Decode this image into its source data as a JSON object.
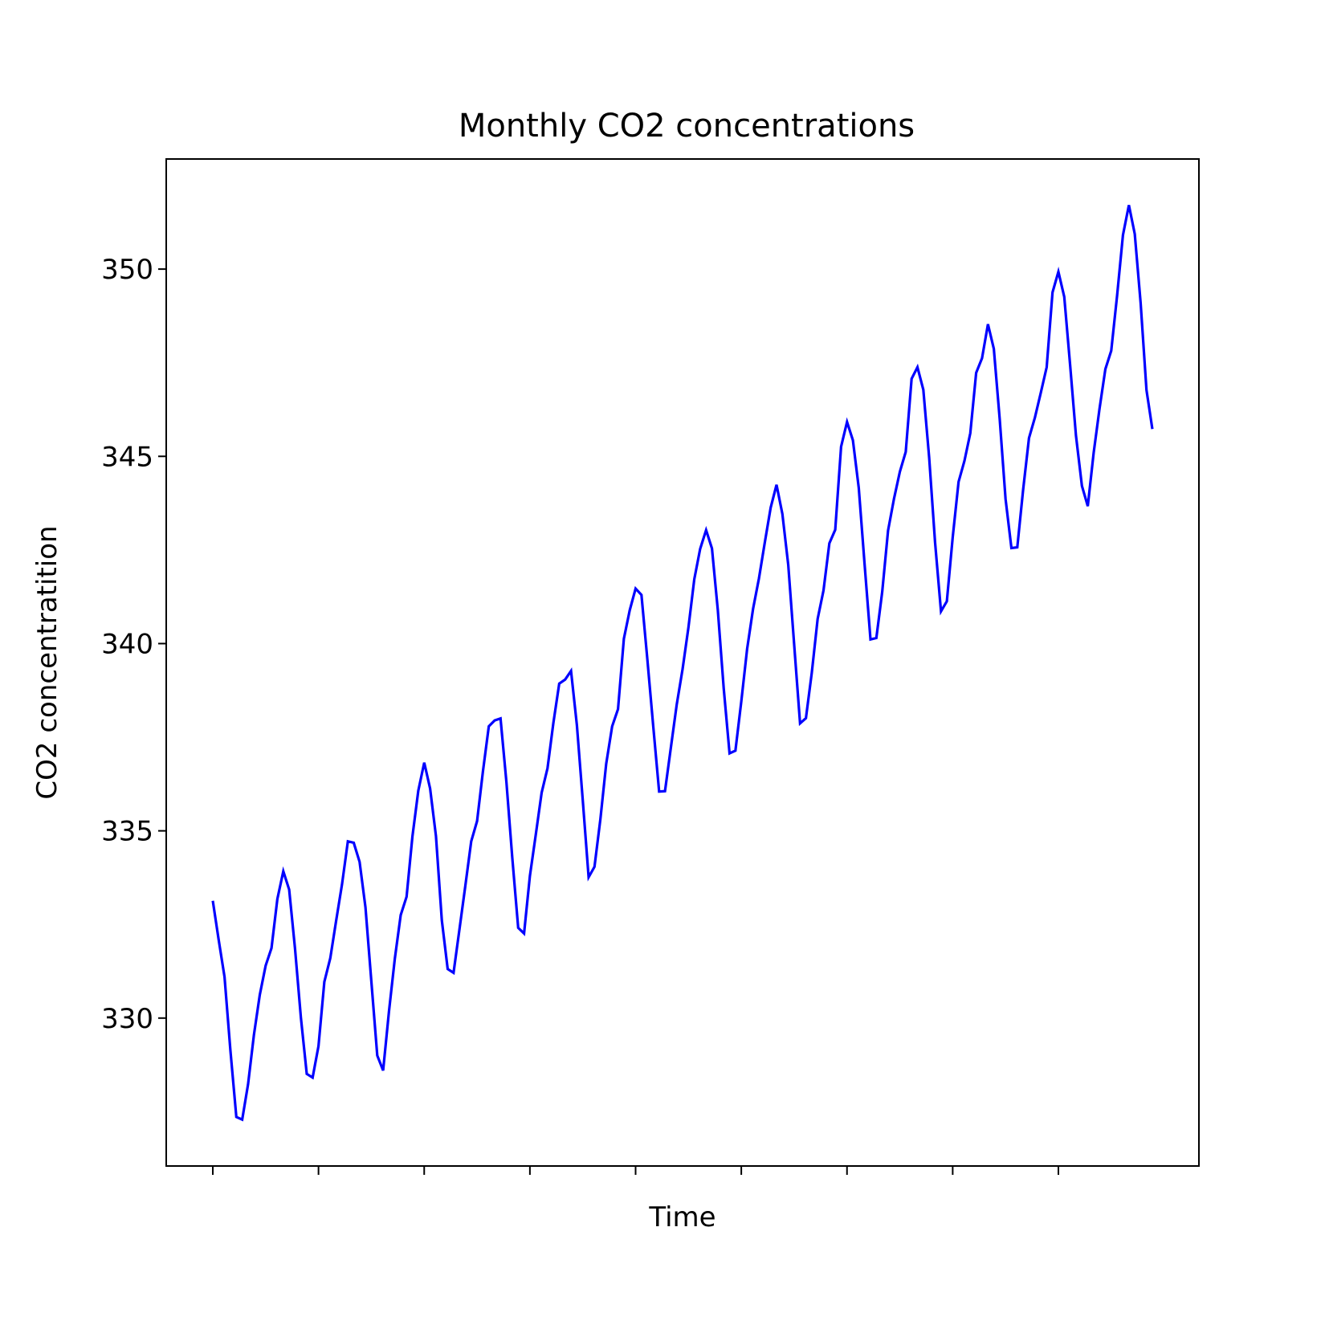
{
  "chart_data": {
    "type": "line",
    "title": "Monthly CO2 concentrations",
    "xlabel": "Time",
    "ylabel": "CO2 concentratition",
    "ylim": [
      326.05,
      352.94
    ],
    "grid": false,
    "x_tick_labels_shown": false,
    "y_ticks": [
      {
        "value": 330,
        "label": "330"
      },
      {
        "value": 335,
        "label": "335"
      },
      {
        "value": 340,
        "label": "340"
      },
      {
        "value": 345,
        "label": "345"
      },
      {
        "value": 350,
        "label": "350"
      }
    ],
    "series": [
      {
        "color": "#0000ff",
        "values": [
          333.13,
          332.09,
          331.1,
          329.14,
          327.36,
          327.29,
          328.23,
          329.55,
          330.62,
          331.4,
          331.87,
          333.18,
          333.92,
          333.43,
          331.85,
          330.01,
          328.51,
          328.41,
          329.25,
          330.97,
          331.6,
          332.6,
          333.57,
          334.72,
          334.68,
          334.17,
          332.96,
          330.99,
          329.0,
          328.6,
          330.18,
          331.59,
          332.75,
          333.24,
          334.85,
          336.07,
          336.82,
          336.13,
          334.86,
          332.61,
          331.31,
          331.21,
          332.36,
          333.52,
          334.72,
          335.26,
          336.59,
          337.79,
          337.95,
          338.0,
          336.31,
          334.29,
          332.41,
          332.26,
          333.8,
          334.9,
          336.02,
          336.67,
          337.88,
          338.93,
          339.04,
          339.27,
          337.82,
          335.82,
          333.76,
          334.04,
          335.3,
          336.79,
          337.79,
          338.25,
          340.13,
          340.89,
          341.47,
          341.3,
          339.59,
          337.81,
          336.05,
          336.06,
          337.22,
          338.37,
          339.32,
          340.43,
          341.72,
          342.53,
          343.03,
          342.54,
          340.89,
          338.81,
          337.07,
          337.14,
          338.45,
          339.86,
          340.93,
          341.74,
          342.7,
          343.63,
          344.24,
          343.46,
          342.1,
          339.99,
          337.87,
          338.01,
          339.22,
          340.66,
          341.42,
          342.68,
          343.04,
          345.26,
          345.92,
          345.43,
          344.16,
          342.11,
          340.11,
          340.15,
          341.38,
          343.02,
          343.87,
          344.59,
          345.12,
          347.07,
          347.38,
          346.78,
          344.96,
          342.71,
          340.86,
          341.13,
          342.84,
          344.32,
          344.88,
          345.62,
          347.23,
          347.62,
          348.53,
          347.87,
          346.0,
          343.86,
          342.55,
          342.57,
          344.11,
          345.49,
          346.04,
          346.7,
          347.38,
          349.38,
          349.93,
          349.26,
          347.44,
          345.55,
          344.21,
          343.67,
          345.09,
          346.27,
          347.33,
          347.82,
          349.29,
          350.91,
          351.71,
          350.94,
          349.1,
          346.77,
          345.73
        ]
      }
    ]
  }
}
